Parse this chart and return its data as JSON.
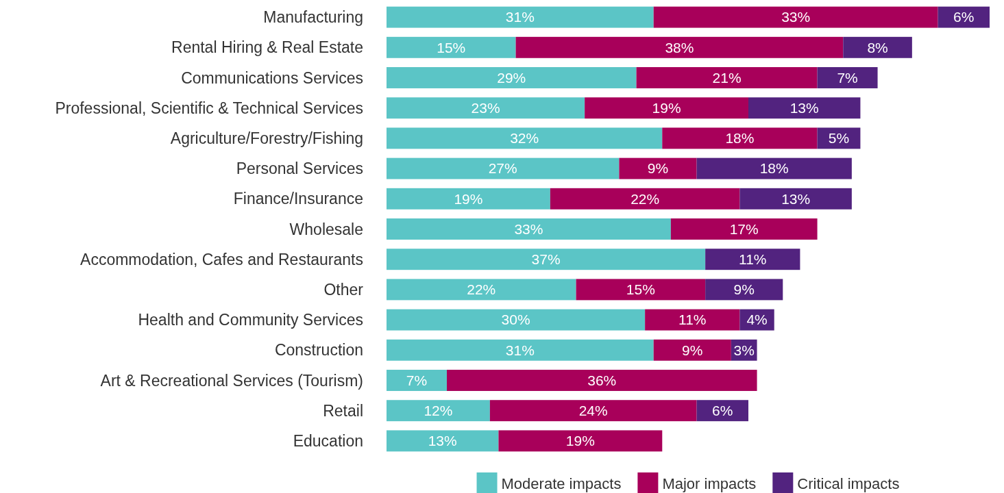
{
  "chart_data": {
    "type": "bar",
    "orientation": "horizontal",
    "stacked": true,
    "legend": "bottom",
    "categories": [
      "Manufacturing",
      "Rental Hiring & Real Estate",
      "Communications Services",
      "Professional, Scientific & Technical Services",
      "Agriculture/Forestry/Fishing",
      "Personal Services",
      "Finance/Insurance",
      "Wholesale",
      "Accommodation, Cafes and Restaurants",
      "Other",
      "Health and Community Services",
      "Construction",
      "Art & Recreational Services (Tourism)",
      "Retail",
      "Education"
    ],
    "series": [
      {
        "name": "Moderate impacts",
        "color": "#5bc5c6",
        "values": [
          31,
          15,
          29,
          23,
          32,
          27,
          19,
          33,
          37,
          22,
          30,
          31,
          7,
          12,
          13
        ],
        "value_labels": [
          "31%",
          "15%",
          "29%",
          "23%",
          "32%",
          "27%",
          "19%",
          "33%",
          "37%",
          "22%",
          "30%",
          "31%",
          "7%",
          "12%",
          "13%"
        ]
      },
      {
        "name": "Major impacts",
        "color": "#a8005a",
        "values": [
          33,
          38,
          21,
          19,
          18,
          9,
          22,
          17,
          null,
          15,
          11,
          9,
          36,
          24,
          19
        ],
        "value_labels": [
          "33%",
          "38%",
          "21%",
          "19%",
          "18%",
          "9%",
          "22%",
          "17%",
          null,
          "15%",
          "11%",
          "9%",
          "36%",
          "24%",
          "19%"
        ]
      },
      {
        "name": "Critical impacts",
        "color": "#52237f",
        "values": [
          6,
          8,
          7,
          13,
          5,
          18,
          13,
          null,
          11,
          9,
          4,
          3,
          null,
          6,
          null
        ],
        "value_labels": [
          "6%",
          "8%",
          "7%",
          "13%",
          "5%",
          "18%",
          "13%",
          null,
          "11%",
          "9%",
          "4%",
          "3%",
          null,
          "6%",
          null
        ]
      }
    ]
  }
}
